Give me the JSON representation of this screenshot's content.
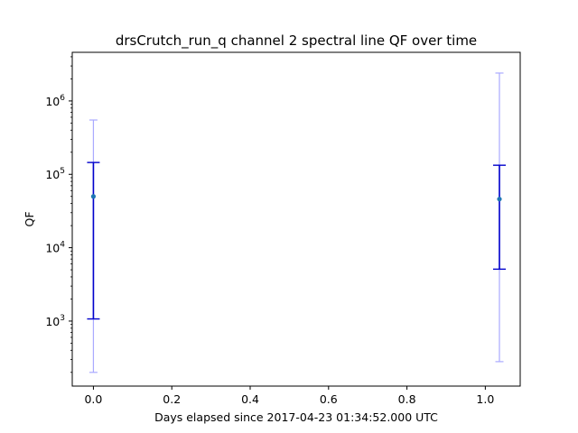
{
  "chart_data": {
    "type": "scatter",
    "title": "drsCrutch_run_q channel 2 spectral line QF over time",
    "xlabel": "Days elapsed since 2017-04-23 01:34:52.000 UTC",
    "ylabel": "QF",
    "xscale": "linear",
    "yscale": "log",
    "xlim": [
      -0.054,
      1.089
    ],
    "ylim": [
      130,
      4600000
    ],
    "x_ticks": [
      0.0,
      0.2,
      0.4,
      0.6,
      0.8,
      1.0
    ],
    "x_tick_labels": [
      "0.0",
      "0.2",
      "0.4",
      "0.6",
      "0.8",
      "1.0"
    ],
    "y_ticks": [
      1000,
      10000,
      100000,
      1000000
    ],
    "y_tick_labels": [
      {
        "base": "10",
        "exp": "3"
      },
      {
        "base": "10",
        "exp": "4"
      },
      {
        "base": "10",
        "exp": "5"
      },
      {
        "base": "10",
        "exp": "6"
      }
    ],
    "grid": false,
    "series": [
      {
        "name": "QF",
        "marker_color": "#1f77b4",
        "x": [
          0.0,
          1.036
        ],
        "y": [
          50000,
          46000
        ],
        "inner_error": {
          "low": [
            1070,
            5100
          ],
          "high": [
            145000,
            133000
          ],
          "color": "#0000cc"
        },
        "outer_error": {
          "low": [
            200,
            280
          ],
          "high": [
            550000,
            2400000
          ],
          "color": "#aaaaff"
        }
      }
    ]
  }
}
